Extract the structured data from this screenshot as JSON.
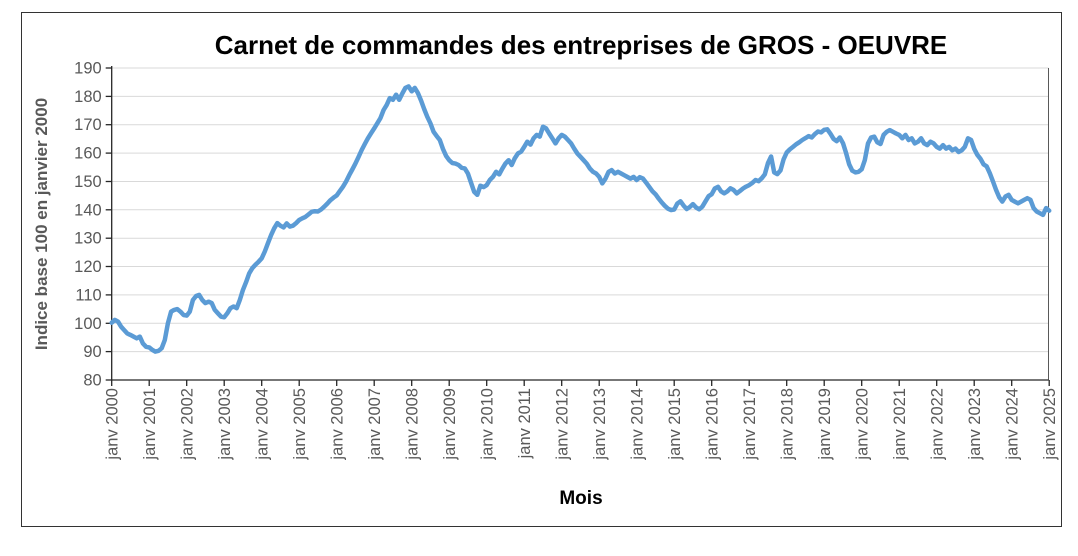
{
  "chart": {
    "title": "Carnet de commandes des entreprises de GROS - OEUVRE",
    "y_axis_title": "Indice base 100 en janvier 2000",
    "x_axis_title": "Mois",
    "y_tick_labels": [
      "190",
      "180",
      "170",
      "160",
      "150",
      "140",
      "130",
      "120",
      "110",
      "100",
      "90",
      "80"
    ],
    "x_tick_labels": [
      "janv 2000",
      "janv 2001",
      "janv 2002",
      "janv 2003",
      "janv 2004",
      "janv 2005",
      "janv 2006",
      "janv 2007",
      "janv 2008",
      "janv 2009",
      "janv 2010",
      "janv 2011",
      "janv 2012",
      "janv 2013",
      "janv 2014",
      "janv 2015",
      "janv 2016",
      "janv 2017",
      "janv 2018",
      "janv 2019",
      "janv 2020",
      "janv 2021",
      "janv 2022",
      "janv 2023",
      "janv 2024",
      "janv 2025"
    ]
  },
  "chart_data": {
    "type": "line",
    "title": "Carnet de commandes des entreprises de GROS - OEUVRE",
    "xlabel": "Mois",
    "ylabel": "Indice base 100 en janvier 2000",
    "ylim": [
      80,
      190
    ],
    "y_tick_step": 10,
    "grid": true,
    "legend": false,
    "frequency": "monthly",
    "x_start": "janv 2000",
    "x_end": "janv 2025",
    "colors": {
      "line": "#5B9BD5",
      "grid": "#D9D9D9",
      "axis": "#262626",
      "plot_border": "#595959",
      "tick_text": "#595959"
    },
    "values": [
      100.2,
      101.2,
      100.6,
      98.8,
      97.6,
      96.4,
      95.9,
      95.3,
      94.7,
      95.3,
      92.9,
      91.7,
      91.5,
      90.6,
      90,
      90.3,
      91.2,
      94.1,
      100,
      104.1,
      104.7,
      105,
      104.1,
      102.9,
      102.7,
      104.1,
      108.2,
      109.6,
      110,
      108.2,
      107.1,
      107.6,
      107.1,
      104.7,
      103.5,
      102.3,
      102.1,
      103.5,
      105.3,
      105.9,
      105.3,
      108.2,
      111.7,
      114.5,
      117.6,
      119.4,
      120.6,
      121.7,
      122.9,
      125.3,
      128.2,
      131.1,
      133.5,
      135.3,
      134.4,
      133.8,
      135.2,
      134.1,
      134.4,
      135.3,
      136.4,
      137,
      137.5,
      138.4,
      139.3,
      139.5,
      139.4,
      140.1,
      141.1,
      142.2,
      143.4,
      144.3,
      145.1,
      146.6,
      148.1,
      150,
      152.2,
      154.2,
      156.3,
      158.7,
      161.1,
      163.2,
      165.2,
      167,
      168.7,
      170.5,
      172.3,
      175.2,
      177,
      179.4,
      178.8,
      180.6,
      178.8,
      181,
      183,
      183.5,
      181.8,
      183,
      181.2,
      178.5,
      175.5,
      172.8,
      170.5,
      167.5,
      166,
      164.6,
      161.5,
      159,
      157.5,
      156.5,
      156.3,
      155.8,
      154.8,
      154.6,
      152.8,
      149.5,
      146.3,
      145.3,
      148.5,
      148,
      148.7,
      150.5,
      151.6,
      153.4,
      152.5,
      154.5,
      156.3,
      157.5,
      155.8,
      158.2,
      159.9,
      160.5,
      162.2,
      164,
      163,
      165.2,
      166.4,
      165.8,
      169.3,
      168.7,
      166.9,
      165.2,
      163.4,
      165.2,
      166.4,
      165.8,
      164.6,
      163.4,
      161.6,
      159.9,
      158.7,
      157.5,
      156.3,
      154.6,
      153.4,
      152.8,
      151.6,
      149.3,
      151,
      153.4,
      154,
      152.8,
      153.4,
      152.8,
      152.2,
      151.6,
      151,
      151.6,
      150.5,
      151.5,
      151,
      149.6,
      148.1,
      146.6,
      145.5,
      144,
      142.6,
      141.4,
      140.4,
      139.9,
      140.1,
      142.2,
      143,
      141.5,
      140.3,
      141,
      142,
      140.8,
      140.2,
      141.1,
      143,
      144.8,
      145.5,
      147.5,
      148.1,
      146.5,
      145.8,
      146.5,
      147.6,
      147,
      145.8,
      146.6,
      147.5,
      148.2,
      148.7,
      149.5,
      150.5,
      150.1,
      151.1,
      152.5,
      156.5,
      158.8,
      153.2,
      152.6,
      153.9,
      157.8,
      160.2,
      161.3,
      162.2,
      163.1,
      163.8,
      164.6,
      165.3,
      166,
      165.5,
      166.7,
      167.6,
      167.3,
      168.2,
      168.4,
      166.8,
      165,
      164.2,
      165.5,
      163.5,
      160,
      156,
      153.8,
      153.2,
      153.4,
      154.3,
      157.5,
      163.4,
      165.5,
      165.8,
      163.8,
      163.2,
      166.4,
      167.5,
      168.1,
      167.5,
      166.9,
      166.4,
      165.2,
      166.4,
      164.6,
      165.2,
      163.4,
      164,
      165.2,
      163.4,
      162.8,
      164,
      163.4,
      162.2,
      161.6,
      162.8,
      161.6,
      162.2,
      161,
      161.6,
      160.4,
      161,
      162.2,
      165.2,
      164.6,
      161.5,
      159.4,
      158,
      156,
      155.3,
      152.9,
      150,
      147,
      144.4,
      142.9,
      144.7,
      145.3,
      143.5,
      142.9,
      142.3,
      142.9,
      143.5,
      144.1,
      143.5,
      140.6,
      139.4,
      138.8,
      138.2,
      140.6,
      139.7
    ]
  }
}
